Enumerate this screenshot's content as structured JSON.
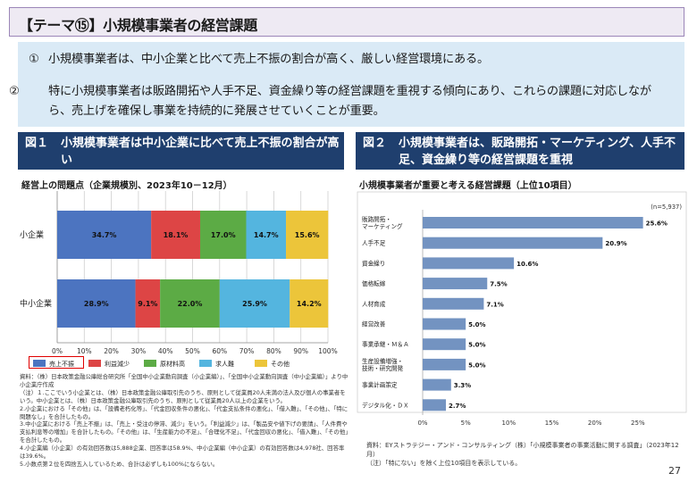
{
  "header": {
    "title": "【テーマ⑮】小規模事業者の経営課題"
  },
  "summary": {
    "item1_num": "①",
    "item1_text": "小規模事業者は、中小企業と比べて売上不振の割合が高く、厳しい経営環境にある。",
    "item2_num": "②",
    "item2_text": "特に小規模事業者は販路開拓や人手不足、資金繰り等の経営課題を重視する傾向にあり、これらの課題に対応しながら、売上げを確保し事業を持続的に発展させていくことが重要。"
  },
  "fig1": {
    "num": "図１",
    "title": "小規模事業者は中小企業に比べて売上不振の割合が高い",
    "subtitle": "経営上の問題点（企業規模別、2023年10－12月）",
    "notes": [
      "資料：（株）日本政策金融公庫総合研究所「全国中小企業動向調査（小企業編）」、「全国中小企業動向調査（中小企業編）」より中小企業庁作成",
      "（注）１.ここでいう小企業とは、（株）日本政策金融公庫取引先のうち、原則として従業員20人未満の法人及び個人の事業者をいう。中小企業とは、（株）日本政策金融公庫取引先のうち、原則として従業員20人以上の企業をいう。",
      "2.小企業における「その他」は、「設備老朽化等」、「代金回収条件の悪化」、「代金支払条件の悪化」、「借入難」、「その他」、「特に問題なし」を合計したもの。",
      "3.中小企業における「売上不振」は、「売上・受注の停滞、減少」をいう。「利益減少」は、「製品安や値下げの要請」、「人件費や支払利息等の増加」を合計したもの。「その他」は、「生産能力の不足」、「合理化不足」、「代金回収の悪化」、「借入難」、「その他」を合計したもの。",
      "4.小企業編（小企業）の有効回答数は5,888企業、回答率は58.9%、中小企業編（中小企業）の有効回答数は4,978社、回答率は39.6%。",
      "5.小数点第２位を四捨五入しているため、合計は必ずしも100%にならない。"
    ]
  },
  "fig2": {
    "num": "図２",
    "title": "小規模事業者は、販路開拓・マーケティング、人手不足、資金繰り等の経営課題を重視",
    "subtitle": "小規模事業者が重要と考える経営課題（上位10項目）",
    "source_lines": [
      "資料：EYストラテジー・アンド・コンサルティング（株）「小規模事業者の事業活動に関する調査」（2023年12月）",
      "（注）「特にない」を除く上位10項目を表示している。"
    ]
  },
  "page": {
    "number": "27"
  },
  "chart_data": [
    {
      "type": "bar",
      "orientation": "horizontal",
      "stacked": true,
      "percent": true,
      "title": "経営上の問題点（企業規模別、2023年10－12月）",
      "categories": [
        "小企業",
        "中小企業"
      ],
      "series": [
        {
          "name": "売上不振",
          "values": [
            34.7,
            28.9
          ],
          "color": "#4c74c0"
        },
        {
          "name": "利益減少",
          "values": [
            18.1,
            9.1
          ],
          "color": "#dd4545"
        },
        {
          "name": "原材料高",
          "values": [
            17.0,
            22.0
          ],
          "color": "#5cab45"
        },
        {
          "name": "求人難",
          "values": [
            14.7,
            25.9
          ],
          "color": "#54b5df"
        },
        {
          "name": "その他",
          "values": [
            15.6,
            14.2
          ],
          "color": "#ecc53a"
        }
      ],
      "xlim": [
        0,
        100
      ],
      "xticks": [
        "0%",
        "10%",
        "20%",
        "30%",
        "40%",
        "50%",
        "60%",
        "70%",
        "80%",
        "90%",
        "100%"
      ],
      "grid": true,
      "legend_position": "bottom"
    },
    {
      "type": "bar",
      "orientation": "horizontal",
      "title": "小規模事業者が重要と考える経営課題（上位10項目）",
      "annotation": "(n=5,937)",
      "categories": [
        "販路開拓・\nマーケティング",
        "人手不足",
        "資金繰り",
        "価格転嫁",
        "人材育成",
        "経営改善",
        "事業承継・Ｍ＆Ａ",
        "生産設備増強・\n技術・研究開発",
        "事業計画策定",
        "デジタル化・ＤＸ"
      ],
      "values": [
        25.6,
        20.9,
        10.6,
        7.5,
        7.1,
        5.0,
        5.0,
        5.0,
        3.3,
        2.7
      ],
      "value_labels": [
        "25.6%",
        "20.9%",
        "10.6%",
        "7.5%",
        "7.1%",
        "5.0%",
        "5.0%",
        "5.0%",
        "3.3%",
        "2.7%"
      ],
      "color": "#7393c1",
      "xlim": [
        0,
        30
      ],
      "xticks": [
        "0%",
        "5%",
        "10%",
        "15%",
        "20%",
        "25%"
      ],
      "grid": false
    }
  ]
}
